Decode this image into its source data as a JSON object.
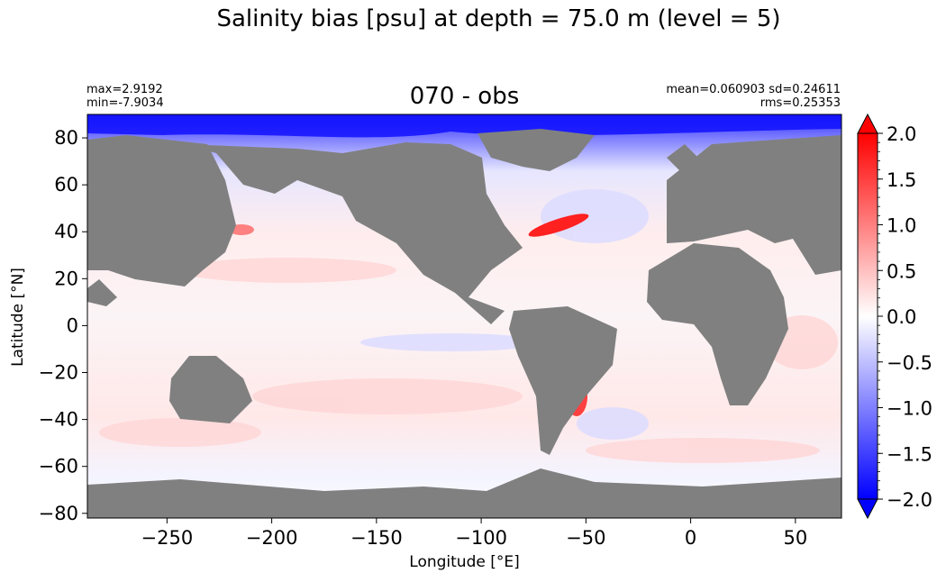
{
  "figure": {
    "suptitle": "Salinity bias [psu] at depth = 75.0 m (level = 5)",
    "panel_title": "070 - obs",
    "stats": {
      "max": "max=2.9192",
      "min": "min=-7.9034",
      "mean_sd": "mean=0.060903 sd=0.24611",
      "rms": "rms=0.25353"
    }
  },
  "chart_data": {
    "type": "heatmap",
    "title": "070 - obs",
    "xlabel": "Longitude [°E]",
    "ylabel": "Latitude [°N]",
    "xlim": [
      -288,
      72
    ],
    "ylim": [
      -82,
      90
    ],
    "xticks": [
      -250,
      -200,
      -150,
      -100,
      -50,
      0,
      50
    ],
    "xtick_labels": [
      "−250",
      "−200",
      "−150",
      "−100",
      "−50",
      "0",
      "50"
    ],
    "yticks": [
      -80,
      -60,
      -40,
      -20,
      0,
      20,
      40,
      60,
      80
    ],
    "ytick_labels": [
      "−80",
      "−60",
      "−40",
      "−20",
      "0",
      "20",
      "40",
      "60",
      "80"
    ],
    "land_color": "#808080",
    "colorbar": {
      "cmap": "bwr",
      "vmin": -2.0,
      "vmax": 2.0,
      "extend": "both",
      "ticks": [
        -2.0,
        -1.5,
        -1.0,
        -0.5,
        0.0,
        0.5,
        1.0,
        1.5,
        2.0
      ],
      "tick_labels": [
        "−2.0",
        "−1.5",
        "−1.0",
        "−0.5",
        "0.0",
        "0.5",
        "1.0",
        "1.5",
        "2.0"
      ],
      "low_color": "#0000ff",
      "mid_color": "#ffffff",
      "high_color": "#ff0000"
    }
  }
}
